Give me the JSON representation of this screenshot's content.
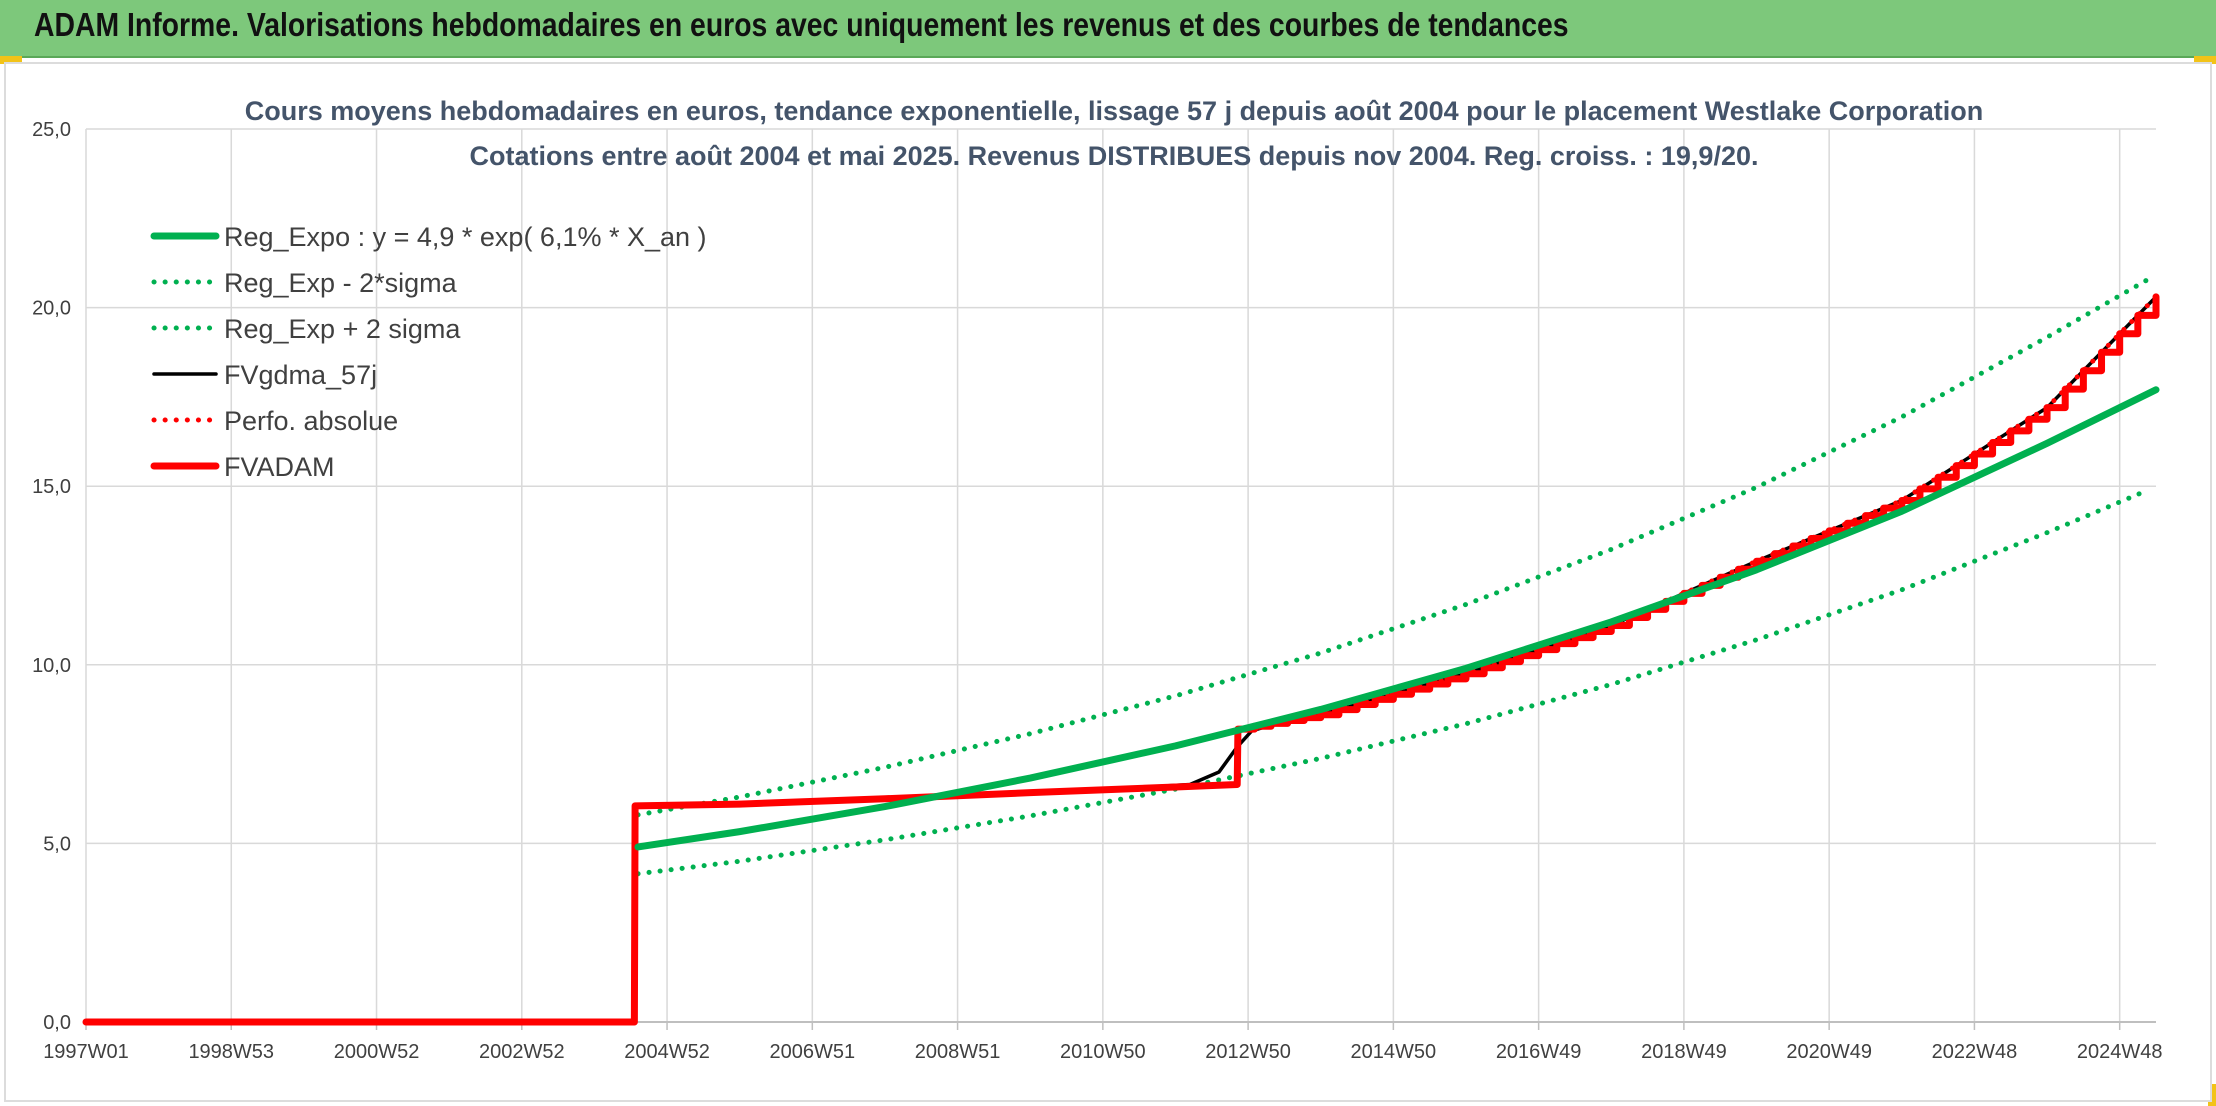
{
  "header": {
    "title": "ADAM Informe. Valorisations hebdomadaires en euros avec uniquement les revenus et des courbes de tendances"
  },
  "colors": {
    "header_bg": "#7dc87b",
    "green": "#00b050",
    "red": "#ff0000",
    "black": "#000000",
    "grid": "#d9d9d9",
    "title_text": "#44546a"
  },
  "chart_data": {
    "type": "line",
    "title": "Cours moyens hebdomadaires en euros, tendance exponentielle, lissage 57 j depuis août 2004 pour le placement Westlake Corporation",
    "subtitle": "Cotations entre août 2004 et mai 2025. Revenus DISTRIBUES depuis nov 2004. Reg. croiss. : 19,9/20.",
    "xlabel": "",
    "ylabel": "",
    "x_range": [
      1997.0,
      2025.5
    ],
    "ylim": [
      0,
      25
    ],
    "y_ticks": [
      "0,0",
      "5,0",
      "10,0",
      "15,0",
      "20,0",
      "25,0"
    ],
    "x_ticks": [
      {
        "label": "1997W01",
        "x": 1997.0
      },
      {
        "label": "1998W53",
        "x": 1999.0
      },
      {
        "label": "2000W52",
        "x": 2001.0
      },
      {
        "label": "2002W52",
        "x": 2003.0
      },
      {
        "label": "2004W52",
        "x": 2005.0
      },
      {
        "label": "2006W51",
        "x": 2007.0
      },
      {
        "label": "2008W51",
        "x": 2009.0
      },
      {
        "label": "2010W50",
        "x": 2011.0
      },
      {
        "label": "2012W50",
        "x": 2013.0
      },
      {
        "label": "2014W50",
        "x": 2015.0
      },
      {
        "label": "2016W49",
        "x": 2017.0
      },
      {
        "label": "2018W49",
        "x": 2019.0
      },
      {
        "label": "2020W49",
        "x": 2021.0
      },
      {
        "label": "2022W48",
        "x": 2023.0
      },
      {
        "label": "2024W48",
        "x": 2025.0
      }
    ],
    "grid": true,
    "legend_position": "top-left",
    "series": [
      {
        "name": "Reg_Expo : y = 4,9 * exp( 6,1% *  X_an )",
        "style": "solid-thick",
        "color": "#00b050",
        "x": [
          2004.6,
          2006.0,
          2008.0,
          2010.0,
          2012.0,
          2014.0,
          2016.0,
          2018.0,
          2020.0,
          2022.0,
          2024.0,
          2025.5
        ],
        "y": [
          4.9,
          5.33,
          6.03,
          6.83,
          7.73,
          8.75,
          9.9,
          11.2,
          12.66,
          14.3,
          16.2,
          17.7
        ]
      },
      {
        "name": "Reg_Exp - 2*sigma",
        "style": "dotted",
        "color": "#00b050",
        "x": [
          2004.6,
          2006.0,
          2008.0,
          2010.0,
          2012.0,
          2014.0,
          2016.0,
          2018.0,
          2020.0,
          2022.0,
          2024.0,
          2025.4
        ],
        "y": [
          4.15,
          4.5,
          5.1,
          5.77,
          6.52,
          7.38,
          8.35,
          9.45,
          10.7,
          12.1,
          13.7,
          14.9
        ]
      },
      {
        "name": "Reg_Exp + 2 sigma",
        "style": "dotted",
        "color": "#00b050",
        "x": [
          2004.6,
          2006.0,
          2008.0,
          2010.0,
          2012.0,
          2014.0,
          2016.0,
          2018.0,
          2020.0,
          2022.0,
          2024.0,
          2025.4
        ],
        "y": [
          5.8,
          6.3,
          7.13,
          8.07,
          9.13,
          10.33,
          11.69,
          13.23,
          14.97,
          16.94,
          19.17,
          20.8
        ]
      },
      {
        "name": "FVgdma_57j",
        "style": "solid",
        "color": "#000000",
        "x": [
          2004.6,
          2006.0,
          2008.0,
          2010.0,
          2011.6,
          2012.2,
          2012.6,
          2012.85,
          2013.05,
          2013.3,
          2014.0,
          2016.0,
          2018.0,
          2020.0,
          2022.0,
          2024.0,
          2025.5
        ],
        "y": [
          6.05,
          6.1,
          6.25,
          6.42,
          6.58,
          6.65,
          7.0,
          7.7,
          8.15,
          8.3,
          8.6,
          9.75,
          11.1,
          12.9,
          14.6,
          17.2,
          20.3
        ]
      },
      {
        "name": "Perfo. absolue",
        "style": "dotted",
        "color": "#ff0000",
        "x": [
          1997.0,
          2004.55,
          2004.56,
          2006.0,
          2008.0,
          2010.0,
          2012.0,
          2012.85,
          2012.86,
          2014.0,
          2016.0,
          2018.0,
          2020.0,
          2022.0,
          2024.0,
          2025.5
        ],
        "y": [
          0.0,
          0.0,
          6.05,
          6.1,
          6.25,
          6.42,
          6.58,
          6.65,
          8.2,
          8.6,
          9.75,
          11.1,
          12.9,
          14.6,
          17.2,
          20.3
        ]
      },
      {
        "name": "FVADAM",
        "style": "solid-thick",
        "color": "#ff0000",
        "x": [
          1997.0,
          2004.55,
          2004.56,
          2006.0,
          2008.0,
          2010.0,
          2012.0,
          2012.85,
          2012.86,
          2014.0,
          2016.0,
          2018.0,
          2020.0,
          2022.0,
          2024.0,
          2025.5
        ],
        "y": [
          0.0,
          0.0,
          6.05,
          6.1,
          6.25,
          6.42,
          6.58,
          6.65,
          8.2,
          8.6,
          9.75,
          11.1,
          12.9,
          14.6,
          17.2,
          20.3
        ]
      }
    ]
  }
}
